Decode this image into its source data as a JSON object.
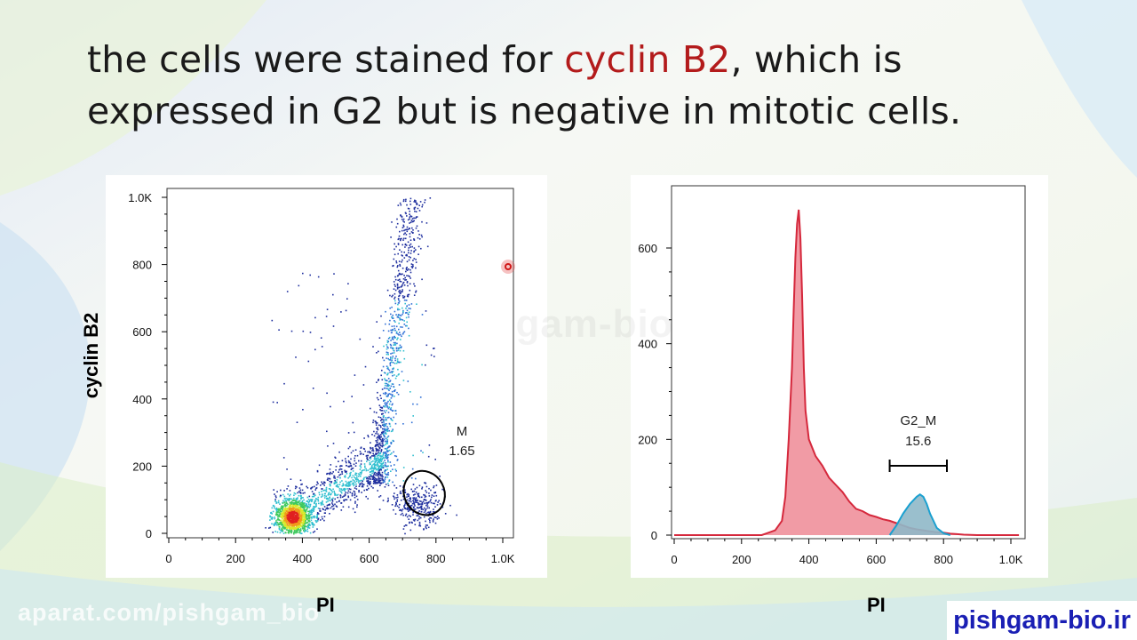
{
  "slide": {
    "title_before": "the cells were stained for ",
    "title_highlight": "cyclin B2",
    "title_after": ", which is expressed in G2 but is negative in mitotic cells.",
    "highlight_color": "#b31b1b",
    "watermark_bottom": "aparat.com/pishgam_bio",
    "watermark_center": "pishgam-bio.ir",
    "brand": "pishgam-bio.ir",
    "brand_color": "#1a1fb4"
  },
  "chart_data": [
    {
      "type": "scatter",
      "xlabel": "PI",
      "ylabel": "cyclin B2",
      "xlim": [
        0,
        1024
      ],
      "ylim": [
        0,
        1024
      ],
      "x_ticks": [
        {
          "value": 0,
          "label": "0"
        },
        {
          "value": 200,
          "label": "200"
        },
        {
          "value": 400,
          "label": "400"
        },
        {
          "value": 600,
          "label": "600"
        },
        {
          "value": 800,
          "label": "800"
        },
        {
          "value": 1000,
          "label": "1.0K"
        }
      ],
      "y_ticks": [
        {
          "value": 0,
          "label": "0"
        },
        {
          "value": 200,
          "label": "200"
        },
        {
          "value": 400,
          "label": "400"
        },
        {
          "value": 600,
          "label": "600"
        },
        {
          "value": 800,
          "label": "800"
        },
        {
          "value": 1000,
          "label": "1.0K"
        }
      ],
      "density_clusters": [
        {
          "name": "G1",
          "x": 370,
          "y": 50,
          "sx": 28,
          "sy": 28,
          "weight": 0.38
        },
        {
          "name": "S",
          "x": 520,
          "y": 170,
          "sx": 75,
          "sy": 45,
          "weight": 0.22
        },
        {
          "name": "G2 arm",
          "x": 740,
          "y": 450,
          "sx": 25,
          "sy": 230,
          "weight": 0.3
        },
        {
          "name": "M",
          "x": 740,
          "y": 90,
          "sx": 35,
          "sy": 35,
          "weight": 0.1
        }
      ],
      "gate": {
        "label": "M",
        "value": "1.65",
        "center_x": 765,
        "center_y": 120,
        "rx": 120,
        "ry": 80
      },
      "colors": [
        "#1f2f9e",
        "#2f6fd6",
        "#2fbfcf",
        "#3fc95f",
        "#d8e82a",
        "#f09a1a",
        "#e02020"
      ]
    },
    {
      "type": "area",
      "xlabel": "PI",
      "xlim": [
        0,
        1024
      ],
      "ylim": [
        0,
        720
      ],
      "x_ticks": [
        {
          "value": 0,
          "label": "0"
        },
        {
          "value": 200,
          "label": "200"
        },
        {
          "value": 400,
          "label": "400"
        },
        {
          "value": 600,
          "label": "600"
        },
        {
          "value": 800,
          "label": "800"
        },
        {
          "value": 1000,
          "label": "1.0K"
        }
      ],
      "y_ticks": [
        {
          "value": 0,
          "label": "0"
        },
        {
          "value": 200,
          "label": "200"
        },
        {
          "value": 400,
          "label": "400"
        },
        {
          "value": 600,
          "label": "600"
        }
      ],
      "series": [
        {
          "color": "#d5283c",
          "fill": "#ee8a95",
          "x": [
            0,
            260,
            280,
            300,
            320,
            330,
            340,
            350,
            355,
            360,
            365,
            370,
            375,
            380,
            385,
            390,
            400,
            420,
            440,
            460,
            480,
            500,
            520,
            540,
            560,
            580,
            600,
            620,
            640,
            660,
            680,
            700,
            720,
            740,
            760,
            780,
            800,
            820,
            840,
            860,
            900,
            1024
          ],
          "y": [
            0,
            0,
            5,
            10,
            30,
            80,
            200,
            350,
            470,
            580,
            650,
            680,
            620,
            500,
            350,
            260,
            200,
            165,
            145,
            120,
            105,
            90,
            70,
            55,
            50,
            42,
            38,
            33,
            30,
            25,
            20,
            15,
            12,
            10,
            8,
            6,
            5,
            3,
            2,
            1,
            0,
            0
          ]
        },
        {
          "color": "#1aa0d0",
          "fill": "#8fb8c8",
          "x": [
            640,
            660,
            680,
            700,
            720,
            730,
            740,
            750,
            760,
            780,
            800,
            820
          ],
          "y": [
            0,
            20,
            45,
            65,
            80,
            85,
            80,
            65,
            45,
            15,
            4,
            0
          ]
        }
      ],
      "gate": {
        "label": "G2_M",
        "value": "15.6",
        "x_start": 640,
        "x_end": 810,
        "y_level": 150
      }
    }
  ]
}
